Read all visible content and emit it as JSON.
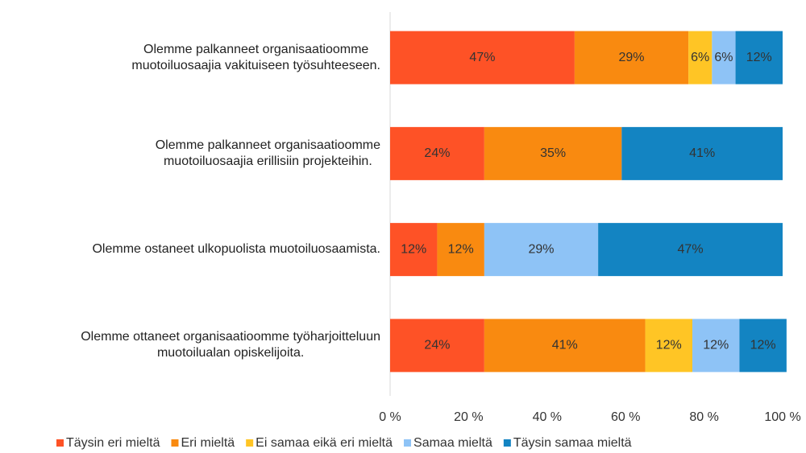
{
  "chart_data": {
    "type": "stacked-barh",
    "categories": [
      "Olemme palkanneet organisaatioomme\nmuotoiluosaajia vakituiseen työsuhteeseen.",
      "Olemme palkanneet organisaatioomme\nmuotoiluosaajia erillisiin projekteihin.",
      "Olemme ostaneet ulkopuolista muotoiluosaamista.",
      "Olemme ottaneet organisaatioomme työharjoitteluun\nmuotoilualan opiskelijoita."
    ],
    "series": [
      {
        "name": "Täysin eri mieltä",
        "color": "#fe5226",
        "values": [
          47,
          24,
          12,
          24
        ],
        "value_labels": [
          "47%",
          "24%",
          "12%",
          "24%"
        ]
      },
      {
        "name": "Eri mieltä",
        "color": "#f98a10",
        "values": [
          29,
          35,
          12,
          41
        ],
        "value_labels": [
          "29%",
          "35%",
          "12%",
          "41%"
        ]
      },
      {
        "name": "Ei samaa eikä eri mieltä",
        "color": "#ffc525",
        "values": [
          6,
          null,
          null,
          12
        ],
        "value_labels": [
          "6%",
          null,
          null,
          "12%"
        ]
      },
      {
        "name": "Samaa mieltä",
        "color": "#8ec3f6",
        "values": [
          6,
          null,
          29,
          12
        ],
        "value_labels": [
          "6%",
          null,
          "29%",
          "12%"
        ]
      },
      {
        "name": "Täysin samaa mieltä",
        "color": "#1384c2",
        "values": [
          12,
          41,
          47,
          12
        ],
        "value_labels": [
          "12%",
          "41%",
          "47%",
          "12%"
        ]
      }
    ],
    "xlim": [
      0,
      100
    ],
    "xticks": [
      {
        "value": 0,
        "label": "0 %"
      },
      {
        "value": 20,
        "label": "20 %"
      },
      {
        "value": 40,
        "label": "40 %"
      },
      {
        "value": 60,
        "label": "60 %"
      },
      {
        "value": 80,
        "label": "80 %"
      },
      {
        "value": 100,
        "label": "100 %"
      }
    ],
    "legend": "bottom"
  }
}
